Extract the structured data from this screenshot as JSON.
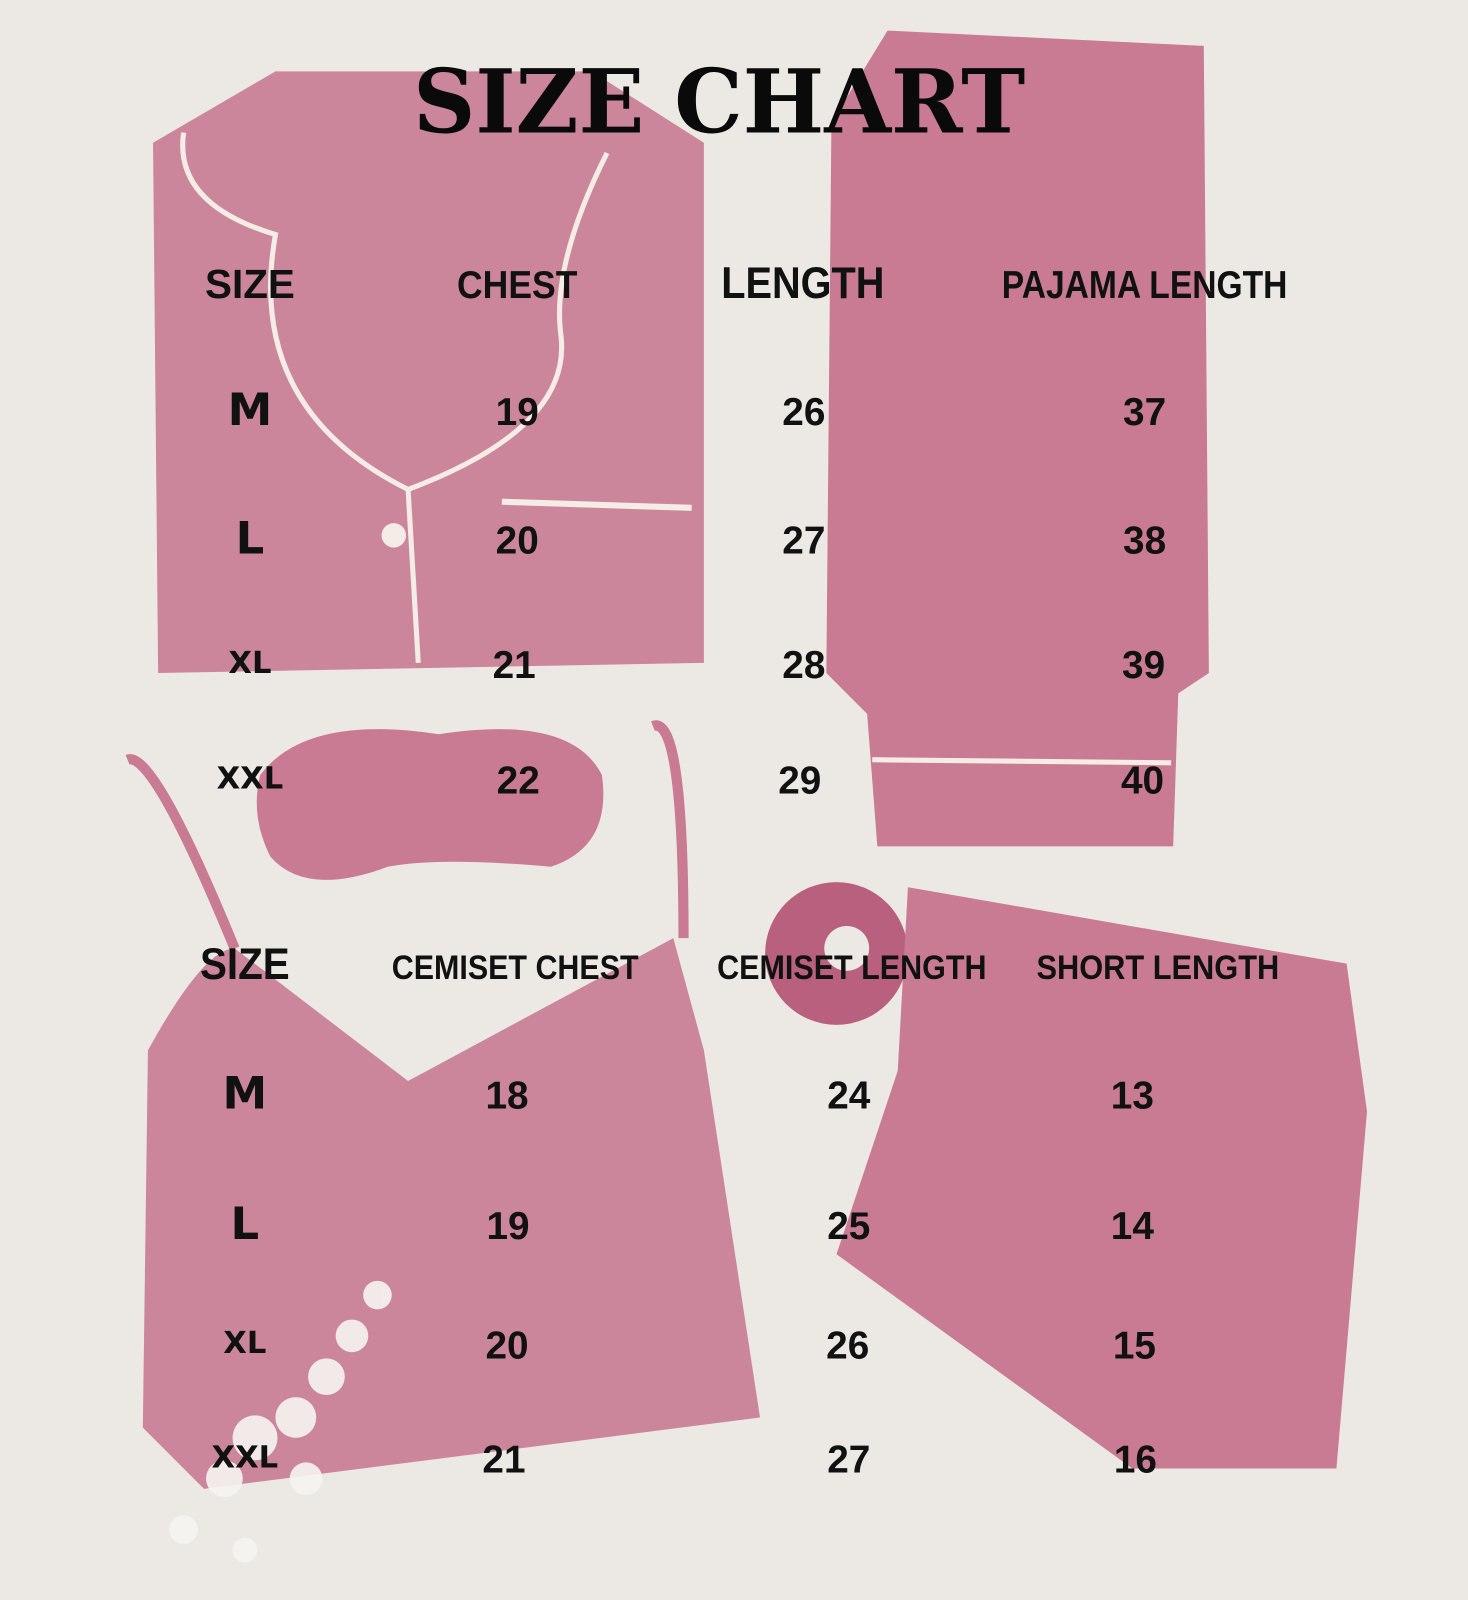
{
  "title": "SIZE CHART",
  "colors": {
    "background": "#ece9e5",
    "garment": "#c97f97",
    "garment_dark": "#b8607e",
    "piping": "#f4ece6",
    "text": "#111111"
  },
  "top_table": {
    "headers": [
      "SIZE",
      "CHEST",
      "LENGTH",
      "PAJAMA LENGTH"
    ],
    "rows": [
      [
        "M",
        "19",
        "26",
        "37"
      ],
      [
        "L",
        "20",
        "27",
        "38"
      ],
      [
        "XL",
        "21",
        "28",
        "39"
      ],
      [
        "XXL",
        "22",
        "29",
        "40"
      ]
    ]
  },
  "bottom_table": {
    "headers": [
      "SIZE",
      "CEMISET CHEST",
      "CEMISET LENGTH",
      "SHORT LENGTH"
    ],
    "rows": [
      [
        "M",
        "18",
        "24",
        "13"
      ],
      [
        "L",
        "19",
        "25",
        "14"
      ],
      [
        "XL",
        "20",
        "26",
        "15"
      ],
      [
        "XXL",
        "21",
        "27",
        "16"
      ]
    ]
  }
}
